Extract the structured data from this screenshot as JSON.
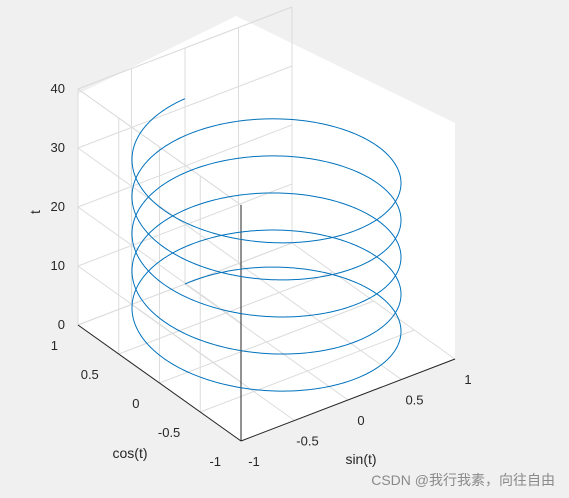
{
  "chart_data": {
    "type": "line3d",
    "title": "",
    "xlabel": "sin(t)",
    "ylabel": "cos(t)",
    "zlabel": "t",
    "xlim": [
      -1,
      1
    ],
    "ylim": [
      -1,
      1
    ],
    "zlim": [
      0,
      40
    ],
    "grid": true,
    "x_ticks": [
      {
        "value": -1,
        "label": "-1"
      },
      {
        "value": -0.5,
        "label": "-0.5"
      },
      {
        "value": 0,
        "label": "0"
      },
      {
        "value": 0.5,
        "label": "0.5"
      },
      {
        "value": 1,
        "label": "1"
      }
    ],
    "y_ticks": [
      {
        "value": -1,
        "label": "-1"
      },
      {
        "value": -0.5,
        "label": "-0.5"
      },
      {
        "value": 0,
        "label": "0"
      },
      {
        "value": 0.5,
        "label": "0.5"
      },
      {
        "value": 1,
        "label": "1"
      }
    ],
    "z_ticks": [
      {
        "value": 0,
        "label": "0"
      },
      {
        "value": 10,
        "label": "10"
      },
      {
        "value": 20,
        "label": "20"
      },
      {
        "value": 30,
        "label": "30"
      },
      {
        "value": 40,
        "label": "40"
      }
    ],
    "series": [
      {
        "x": "sin(t)",
        "y": "cos(t)",
        "z": "t",
        "t_range": [
          0,
          31.4159
        ],
        "color": "#0072bd"
      }
    ]
  },
  "watermark": "CSDN @我行我素，向往自由",
  "colors": {
    "background": "#f0f0f0",
    "axes_background": "#ffffff",
    "grid": "#dcdcdc",
    "axis_line": "#262626",
    "series": "#0072bd"
  }
}
